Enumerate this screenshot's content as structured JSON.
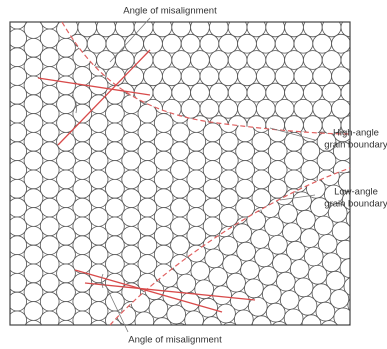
{
  "labels": {
    "top": "Angle of misalignment",
    "high_angle": [
      "High-angle",
      "grain boundary"
    ],
    "low_angle": [
      "Low-angle",
      "grain boundary"
    ],
    "bottom": "Angle of misalignment"
  }
}
